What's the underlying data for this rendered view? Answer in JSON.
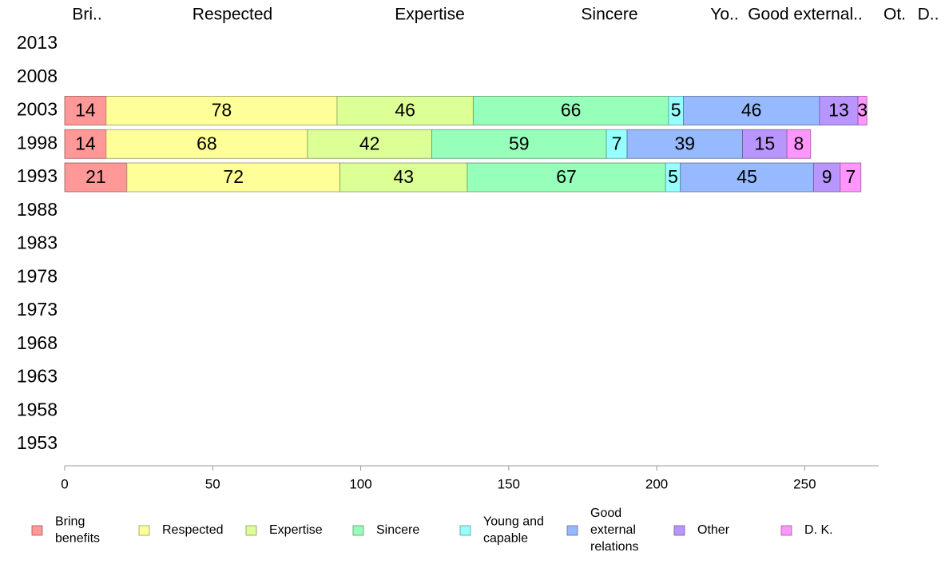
{
  "chart_data": {
    "type": "bar",
    "orientation": "horizontal",
    "stacked": true,
    "headers": [
      "Bri..",
      "Respected",
      "Expertise",
      "Sincere",
      "Yo..",
      "Good external..",
      "Ot.",
      "D.."
    ],
    "categories": [
      "2013",
      "2008",
      "2003",
      "1998",
      "1993",
      "1988",
      "1983",
      "1978",
      "1973",
      "1968",
      "1963",
      "1958",
      "1953"
    ],
    "series": [
      {
        "name": "Bring benefits",
        "color": "#ff9896",
        "values": [
          null,
          null,
          14,
          14,
          21,
          null,
          null,
          null,
          null,
          null,
          null,
          null,
          null
        ]
      },
      {
        "name": "Respected",
        "color": "#ffff99",
        "values": [
          null,
          null,
          78,
          68,
          72,
          null,
          null,
          null,
          null,
          null,
          null,
          null,
          null
        ]
      },
      {
        "name": "Expertise",
        "color": "#dcff96",
        "values": [
          null,
          null,
          46,
          42,
          43,
          null,
          null,
          null,
          null,
          null,
          null,
          null,
          null
        ]
      },
      {
        "name": "Sincere",
        "color": "#96ffb9",
        "values": [
          null,
          null,
          66,
          59,
          67,
          null,
          null,
          null,
          null,
          null,
          null,
          null,
          null
        ]
      },
      {
        "name": "Young and capable",
        "color": "#96ffff",
        "values": [
          null,
          null,
          5,
          7,
          5,
          null,
          null,
          null,
          null,
          null,
          null,
          null,
          null
        ]
      },
      {
        "name": "Good external relations",
        "color": "#96b9ff",
        "values": [
          null,
          null,
          46,
          39,
          45,
          null,
          null,
          null,
          null,
          null,
          null,
          null,
          null
        ]
      },
      {
        "name": "Other",
        "color": "#b996ff",
        "values": [
          null,
          null,
          13,
          15,
          9,
          null,
          null,
          null,
          null,
          null,
          null,
          null,
          null
        ]
      },
      {
        "name": "D. K.",
        "color": "#ff96ff",
        "values": [
          null,
          null,
          3,
          8,
          7,
          null,
          null,
          null,
          null,
          null,
          null,
          null,
          null
        ]
      }
    ],
    "x_ticks": [
      0,
      50,
      100,
      150,
      200,
      250
    ],
    "xlim": [
      0,
      275
    ],
    "grid": false,
    "legend_position": "bottom",
    "legend": [
      {
        "lines": [
          "Bring",
          "benefits"
        ]
      },
      {
        "lines": [
          "Respected"
        ]
      },
      {
        "lines": [
          "Expertise"
        ]
      },
      {
        "lines": [
          "Sincere"
        ]
      },
      {
        "lines": [
          "Young and",
          "capable"
        ]
      },
      {
        "lines": [
          "Good",
          "external",
          "relations"
        ]
      },
      {
        "lines": [
          "Other"
        ]
      },
      {
        "lines": [
          "D. K."
        ]
      }
    ]
  }
}
